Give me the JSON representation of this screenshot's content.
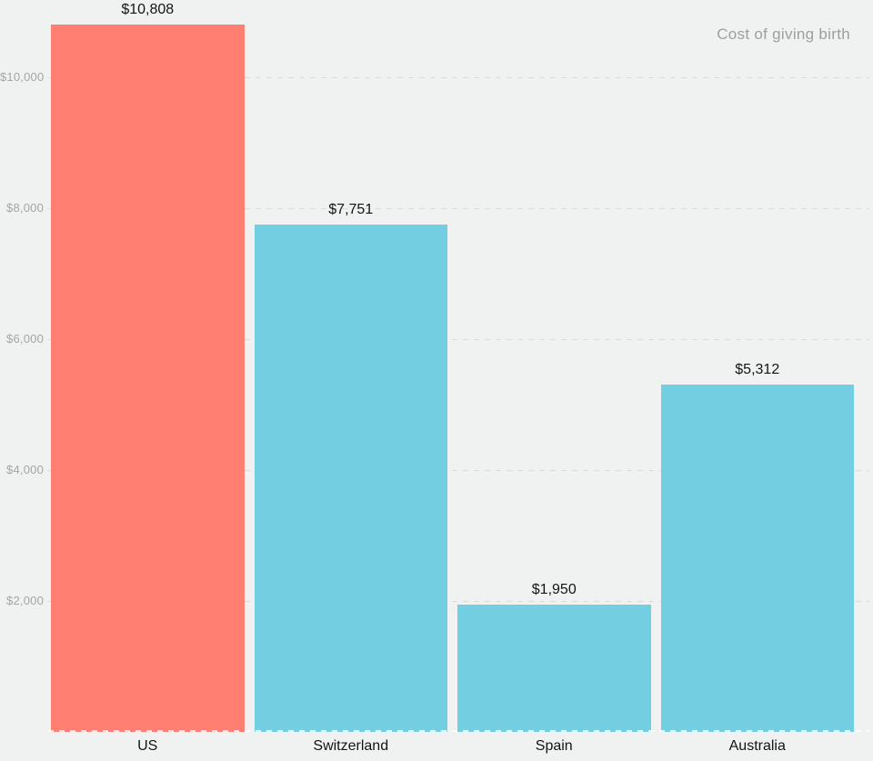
{
  "chart": {
    "title": "Cost of giving birth"
  },
  "chart_data": {
    "type": "bar",
    "title": "Cost of giving birth",
    "xlabel": "",
    "ylabel": "",
    "categories": [
      "US",
      "Switzerland",
      "Spain",
      "Australia"
    ],
    "values": [
      10808,
      7751,
      1950,
      5312
    ],
    "value_labels": [
      "$10,808",
      "$7,751",
      "$1,950",
      "$5,312"
    ],
    "bar_colors": [
      "#ff8072",
      "#74cee2",
      "#74cee2",
      "#74cee2"
    ],
    "ylim": [
      0,
      10808
    ],
    "yticks": [
      {
        "value": 2000,
        "label": "$2,000"
      },
      {
        "value": 4000,
        "label": "$4,000"
      },
      {
        "value": 6000,
        "label": "$6,000"
      },
      {
        "value": 8000,
        "label": "$8,000"
      },
      {
        "value": 10000,
        "label": "$10,000"
      }
    ],
    "grid": "dashed horizontal, behind bars",
    "legend": "none",
    "colors": {
      "background": "#f0f2f1",
      "gridline": "#d8dbda",
      "zero_line": "rgba(255,255,255,0.8)",
      "axis_tick_label": "#a2a6a5",
      "value_label": "#141414",
      "category_label": "#141414",
      "title": "#9b9f9e",
      "highlight_bar": "#ff8072",
      "default_bar": "#74cee2"
    }
  }
}
